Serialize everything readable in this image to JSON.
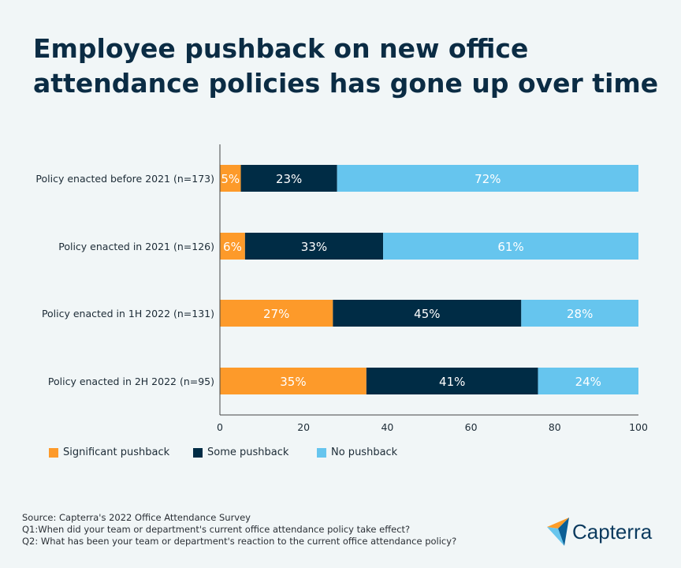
{
  "title": "Employee pushback on new office attendance policies has gone up over time",
  "chart_data": {
    "type": "bar",
    "orientation": "horizontal",
    "stacked": true,
    "categories": [
      "Policy enacted before 2021 (n=173)",
      "Policy enacted in 2021 (n=126)",
      "Policy enacted in 1H 2022 (n=131)",
      "Policy enacted in 2H 2022 (n=95)"
    ],
    "series": [
      {
        "name": "Significant pushback",
        "color": "#fd9a2a",
        "values": [
          5,
          6,
          27,
          35
        ]
      },
      {
        "name": "Some pushback",
        "color": "#002c45",
        "values": [
          23,
          33,
          45,
          41
        ]
      },
      {
        "name": "No pushback",
        "color": "#66c5ee",
        "values": [
          72,
          61,
          28,
          24
        ]
      }
    ],
    "xlim": [
      0,
      100
    ],
    "xticks": [
      0,
      20,
      40,
      60,
      80,
      100
    ],
    "grid": false,
    "legend": "bottom-left",
    "data_label_suffix": "%"
  },
  "source": [
    "Source: Capterra's 2022 Office Attendance Survey",
    "Q1:When did your team or department's current office attendance policy take effect?",
    "Q2: What has been your team or department's reaction to the current office attendance policy?"
  ],
  "logo": "Capterra"
}
